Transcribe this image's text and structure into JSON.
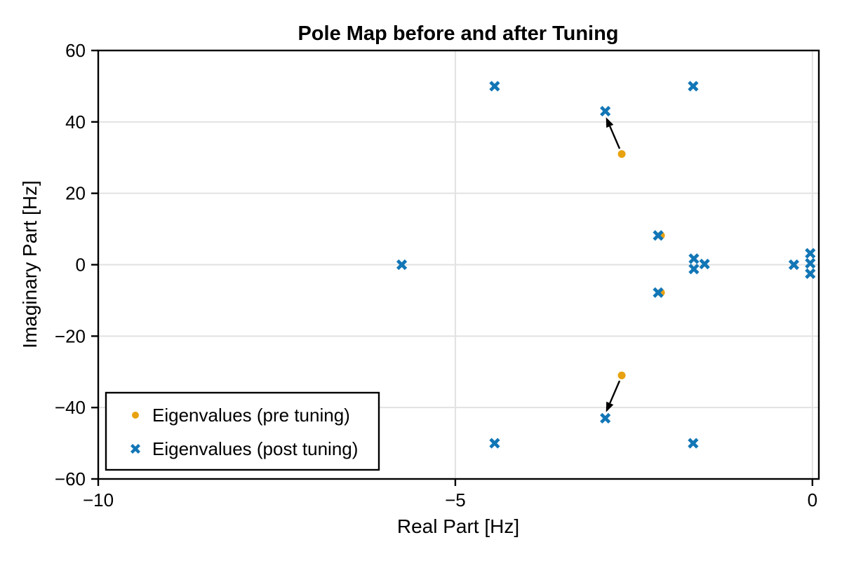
{
  "chart_data": {
    "type": "scatter",
    "title": "Pole Map before and after Tuning",
    "xlabel": "Real Part [Hz]",
    "ylabel": "Imaginary Part [Hz]",
    "xlim": [
      -10,
      0.09
    ],
    "ylim": [
      -60,
      60
    ],
    "grid": true,
    "grid_color": "#e2e2e2",
    "xticks": {
      "values": [
        -10,
        -5,
        0
      ],
      "labels": [
        "−10",
        "−5",
        "0"
      ]
    },
    "yticks": {
      "values": [
        60,
        40,
        20,
        0,
        -20,
        -40,
        -60
      ],
      "labels": [
        "60",
        "40",
        "20",
        "0",
        "−20",
        "−40",
        "−60"
      ]
    },
    "legend": {
      "position": "lower left",
      "entries": [
        {
          "label": "Eigenvalues (pre tuning)",
          "marker": "circle",
          "color": "#e8a210"
        },
        {
          "label": "Eigenvalues (post tuning)",
          "marker": "x",
          "color": "#1276b6"
        }
      ]
    },
    "series": [
      {
        "name": "Eigenvalues (pre tuning)",
        "marker": "circle",
        "color": "#e8a210",
        "points": [
          [
            -2.67,
            31
          ],
          [
            -2.67,
            -31
          ],
          [
            -2.12,
            8.2
          ],
          [
            -2.12,
            -7.8
          ]
        ]
      },
      {
        "name": "Eigenvalues (post tuning)",
        "marker": "x",
        "color": "#1276b6",
        "points": [
          [
            -5.75,
            0
          ],
          [
            -4.45,
            50
          ],
          [
            -4.45,
            -50
          ],
          [
            -2.9,
            43
          ],
          [
            -2.9,
            -43
          ],
          [
            -2.16,
            8.2
          ],
          [
            -2.16,
            -7.8
          ],
          [
            -1.67,
            50
          ],
          [
            -1.67,
            -50
          ],
          [
            -1.66,
            1.7
          ],
          [
            -1.66,
            -1.2
          ],
          [
            -1.51,
            0.2
          ],
          [
            -0.26,
            0
          ],
          [
            -0.03,
            3.2
          ],
          [
            -0.03,
            0.4
          ],
          [
            -0.03,
            -2.5
          ]
        ]
      }
    ],
    "annotations": [
      {
        "type": "arrow",
        "from": [
          -2.7,
          32.5
        ],
        "to": [
          -2.89,
          41.3
        ]
      },
      {
        "type": "arrow",
        "from": [
          -2.7,
          -32.5
        ],
        "to": [
          -2.89,
          -41.3
        ]
      }
    ]
  }
}
